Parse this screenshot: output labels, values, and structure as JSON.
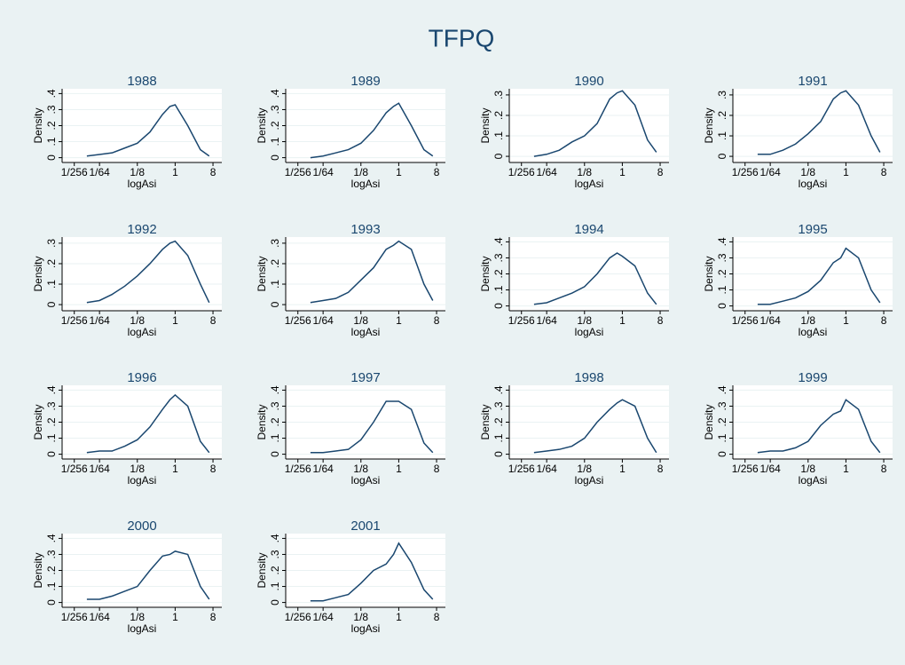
{
  "title": "TFPQ",
  "chart_data": [
    {
      "type": "line",
      "title": "1988",
      "xlabel": "logAsi",
      "ylabel": "Density",
      "xscale": "log",
      "grid": true,
      "color": "#1a476f",
      "xlim": [
        0.002,
        13
      ],
      "ylim": [
        -0.03,
        0.43
      ],
      "xticks": [
        {
          "value": 0.00390625,
          "label": "1/256"
        },
        {
          "value": 0.015625,
          "label": "1/64"
        },
        {
          "value": 0.125,
          "label": "1/8"
        },
        1,
        8
      ],
      "yticks": [
        0,
        {
          "value": 0.1,
          "label": ".1"
        },
        {
          "value": 0.2,
          "label": ".2"
        },
        {
          "value": 0.3,
          "label": ".3"
        },
        {
          "value": 0.4,
          "label": ".4"
        }
      ],
      "x": [
        0.0078,
        0.0156,
        0.0313,
        0.0625,
        0.125,
        0.25,
        0.5,
        0.75,
        1,
        2,
        4,
        6.5
      ],
      "values": [
        0.01,
        0.02,
        0.03,
        0.06,
        0.09,
        0.16,
        0.27,
        0.32,
        0.33,
        0.2,
        0.05,
        0.01
      ]
    },
    {
      "type": "line",
      "title": "1989",
      "xlabel": "logAsi",
      "ylabel": "Density",
      "xscale": "log",
      "grid": true,
      "color": "#1a476f",
      "xlim": [
        0.002,
        13
      ],
      "ylim": [
        -0.03,
        0.43
      ],
      "xticks": [
        {
          "value": 0.00390625,
          "label": "1/256"
        },
        {
          "value": 0.015625,
          "label": "1/64"
        },
        {
          "value": 0.125,
          "label": "1/8"
        },
        1,
        8
      ],
      "yticks": [
        0,
        {
          "value": 0.1,
          "label": ".1"
        },
        {
          "value": 0.2,
          "label": ".2"
        },
        {
          "value": 0.3,
          "label": ".3"
        },
        {
          "value": 0.4,
          "label": ".4"
        }
      ],
      "x": [
        0.0078,
        0.0156,
        0.0313,
        0.0625,
        0.125,
        0.25,
        0.5,
        0.75,
        1,
        2,
        4,
        6.5
      ],
      "values": [
        0.0,
        0.01,
        0.03,
        0.05,
        0.09,
        0.17,
        0.28,
        0.32,
        0.34,
        0.2,
        0.05,
        0.01
      ]
    },
    {
      "type": "line",
      "title": "1990",
      "xlabel": "logAsi",
      "ylabel": "Density",
      "xscale": "log",
      "grid": true,
      "color": "#1a476f",
      "xlim": [
        0.002,
        13
      ],
      "ylim": [
        -0.03,
        0.33
      ],
      "xticks": [
        {
          "value": 0.00390625,
          "label": "1/256"
        },
        {
          "value": 0.015625,
          "label": "1/64"
        },
        {
          "value": 0.125,
          "label": "1/8"
        },
        1,
        8
      ],
      "yticks": [
        0,
        {
          "value": 0.1,
          "label": ".1"
        },
        {
          "value": 0.2,
          "label": ".2"
        },
        {
          "value": 0.3,
          "label": ".3"
        }
      ],
      "x": [
        0.0078,
        0.0156,
        0.0313,
        0.0625,
        0.125,
        0.25,
        0.5,
        0.75,
        1,
        2,
        4,
        6.5
      ],
      "values": [
        0.0,
        0.01,
        0.03,
        0.07,
        0.1,
        0.16,
        0.28,
        0.31,
        0.32,
        0.25,
        0.08,
        0.02
      ]
    },
    {
      "type": "line",
      "title": "1991",
      "xlabel": "logAsi",
      "ylabel": "Density",
      "xscale": "log",
      "grid": true,
      "color": "#1a476f",
      "xlim": [
        0.002,
        13
      ],
      "ylim": [
        -0.03,
        0.33
      ],
      "xticks": [
        {
          "value": 0.00390625,
          "label": "1/256"
        },
        {
          "value": 0.015625,
          "label": "1/64"
        },
        {
          "value": 0.125,
          "label": "1/8"
        },
        1,
        8
      ],
      "yticks": [
        0,
        {
          "value": 0.1,
          "label": ".1"
        },
        {
          "value": 0.2,
          "label": ".2"
        },
        {
          "value": 0.3,
          "label": ".3"
        }
      ],
      "x": [
        0.0078,
        0.0156,
        0.0313,
        0.0625,
        0.125,
        0.25,
        0.5,
        0.75,
        1,
        2,
        4,
        6.5
      ],
      "values": [
        0.01,
        0.01,
        0.03,
        0.06,
        0.11,
        0.17,
        0.28,
        0.31,
        0.32,
        0.25,
        0.1,
        0.02
      ]
    },
    {
      "type": "line",
      "title": "1992",
      "xlabel": "logAsi",
      "ylabel": "Density",
      "xscale": "log",
      "grid": true,
      "color": "#1a476f",
      "xlim": [
        0.002,
        13
      ],
      "ylim": [
        -0.03,
        0.33
      ],
      "xticks": [
        {
          "value": 0.00390625,
          "label": "1/256"
        },
        {
          "value": 0.015625,
          "label": "1/64"
        },
        {
          "value": 0.125,
          "label": "1/8"
        },
        1,
        8
      ],
      "yticks": [
        0,
        {
          "value": 0.1,
          "label": ".1"
        },
        {
          "value": 0.2,
          "label": ".2"
        },
        {
          "value": 0.3,
          "label": ".3"
        }
      ],
      "x": [
        0.0078,
        0.0156,
        0.0313,
        0.0625,
        0.125,
        0.25,
        0.5,
        0.75,
        1,
        2,
        4,
        6.5
      ],
      "values": [
        0.01,
        0.02,
        0.05,
        0.09,
        0.14,
        0.2,
        0.27,
        0.3,
        0.31,
        0.24,
        0.1,
        0.01
      ]
    },
    {
      "type": "line",
      "title": "1993",
      "xlabel": "logAsi",
      "ylabel": "Density",
      "xscale": "log",
      "grid": true,
      "color": "#1a476f",
      "xlim": [
        0.002,
        13
      ],
      "ylim": [
        -0.03,
        0.33
      ],
      "xticks": [
        {
          "value": 0.00390625,
          "label": "1/256"
        },
        {
          "value": 0.015625,
          "label": "1/64"
        },
        {
          "value": 0.125,
          "label": "1/8"
        },
        1,
        8
      ],
      "yticks": [
        0,
        {
          "value": 0.1,
          "label": ".1"
        },
        {
          "value": 0.2,
          "label": ".2"
        },
        {
          "value": 0.3,
          "label": ".3"
        }
      ],
      "x": [
        0.0078,
        0.0156,
        0.0313,
        0.0625,
        0.125,
        0.25,
        0.5,
        0.75,
        1,
        2,
        4,
        6.5
      ],
      "values": [
        0.01,
        0.02,
        0.03,
        0.06,
        0.12,
        0.18,
        0.27,
        0.29,
        0.31,
        0.27,
        0.1,
        0.02
      ]
    },
    {
      "type": "line",
      "title": "1994",
      "xlabel": "logAsi",
      "ylabel": "Density",
      "xscale": "log",
      "grid": true,
      "color": "#1a476f",
      "xlim": [
        0.002,
        13
      ],
      "ylim": [
        -0.03,
        0.43
      ],
      "xticks": [
        {
          "value": 0.00390625,
          "label": "1/256"
        },
        {
          "value": 0.015625,
          "label": "1/64"
        },
        {
          "value": 0.125,
          "label": "1/8"
        },
        1,
        8
      ],
      "yticks": [
        0,
        {
          "value": 0.1,
          "label": ".1"
        },
        {
          "value": 0.2,
          "label": ".2"
        },
        {
          "value": 0.3,
          "label": ".3"
        },
        {
          "value": 0.4,
          "label": ".4"
        }
      ],
      "x": [
        0.0078,
        0.0156,
        0.0313,
        0.0625,
        0.125,
        0.25,
        0.5,
        0.75,
        1,
        2,
        4,
        6.5
      ],
      "values": [
        0.01,
        0.02,
        0.05,
        0.08,
        0.12,
        0.2,
        0.3,
        0.33,
        0.31,
        0.25,
        0.08,
        0.01
      ]
    },
    {
      "type": "line",
      "title": "1995",
      "xlabel": "logAsi",
      "ylabel": "Density",
      "xscale": "log",
      "grid": true,
      "color": "#1a476f",
      "xlim": [
        0.002,
        13
      ],
      "ylim": [
        -0.03,
        0.43
      ],
      "xticks": [
        {
          "value": 0.00390625,
          "label": "1/256"
        },
        {
          "value": 0.015625,
          "label": "1/64"
        },
        {
          "value": 0.125,
          "label": "1/8"
        },
        1,
        8
      ],
      "yticks": [
        0,
        {
          "value": 0.1,
          "label": ".1"
        },
        {
          "value": 0.2,
          "label": ".2"
        },
        {
          "value": 0.3,
          "label": ".3"
        },
        {
          "value": 0.4,
          "label": ".4"
        }
      ],
      "x": [
        0.0078,
        0.0156,
        0.0313,
        0.0625,
        0.125,
        0.25,
        0.5,
        0.75,
        1,
        2,
        4,
        6.5
      ],
      "values": [
        0.01,
        0.01,
        0.03,
        0.05,
        0.09,
        0.16,
        0.27,
        0.3,
        0.36,
        0.3,
        0.1,
        0.02
      ]
    },
    {
      "type": "line",
      "title": "1996",
      "xlabel": "logAsi",
      "ylabel": "Density",
      "xscale": "log",
      "grid": true,
      "color": "#1a476f",
      "xlim": [
        0.002,
        13
      ],
      "ylim": [
        -0.03,
        0.43
      ],
      "xticks": [
        {
          "value": 0.00390625,
          "label": "1/256"
        },
        {
          "value": 0.015625,
          "label": "1/64"
        },
        {
          "value": 0.125,
          "label": "1/8"
        },
        1,
        8
      ],
      "yticks": [
        0,
        {
          "value": 0.1,
          "label": ".1"
        },
        {
          "value": 0.2,
          "label": ".2"
        },
        {
          "value": 0.3,
          "label": ".3"
        },
        {
          "value": 0.4,
          "label": ".4"
        }
      ],
      "x": [
        0.0078,
        0.0156,
        0.0313,
        0.0625,
        0.125,
        0.25,
        0.5,
        0.75,
        1,
        2,
        4,
        6.5
      ],
      "values": [
        0.01,
        0.02,
        0.02,
        0.05,
        0.09,
        0.17,
        0.28,
        0.34,
        0.37,
        0.3,
        0.08,
        0.01
      ]
    },
    {
      "type": "line",
      "title": "1997",
      "xlabel": "logAsi",
      "ylabel": "Density",
      "xscale": "log",
      "grid": true,
      "color": "#1a476f",
      "xlim": [
        0.002,
        13
      ],
      "ylim": [
        -0.03,
        0.43
      ],
      "xticks": [
        {
          "value": 0.00390625,
          "label": "1/256"
        },
        {
          "value": 0.015625,
          "label": "1/64"
        },
        {
          "value": 0.125,
          "label": "1/8"
        },
        1,
        8
      ],
      "yticks": [
        0,
        {
          "value": 0.1,
          "label": ".1"
        },
        {
          "value": 0.2,
          "label": ".2"
        },
        {
          "value": 0.3,
          "label": ".3"
        },
        {
          "value": 0.4,
          "label": ".4"
        }
      ],
      "x": [
        0.0078,
        0.0156,
        0.0313,
        0.0625,
        0.125,
        0.25,
        0.5,
        0.75,
        1,
        2,
        4,
        6.5
      ],
      "values": [
        0.01,
        0.01,
        0.02,
        0.03,
        0.09,
        0.2,
        0.33,
        0.33,
        0.33,
        0.28,
        0.07,
        0.01
      ]
    },
    {
      "type": "line",
      "title": "1998",
      "xlabel": "logAsi",
      "ylabel": "Density",
      "xscale": "log",
      "grid": true,
      "color": "#1a476f",
      "xlim": [
        0.002,
        13
      ],
      "ylim": [
        -0.03,
        0.43
      ],
      "xticks": [
        {
          "value": 0.00390625,
          "label": "1/256"
        },
        {
          "value": 0.015625,
          "label": "1/64"
        },
        {
          "value": 0.125,
          "label": "1/8"
        },
        1,
        8
      ],
      "yticks": [
        0,
        {
          "value": 0.1,
          "label": ".1"
        },
        {
          "value": 0.2,
          "label": ".2"
        },
        {
          "value": 0.3,
          "label": ".3"
        },
        {
          "value": 0.4,
          "label": ".4"
        }
      ],
      "x": [
        0.0078,
        0.0156,
        0.0313,
        0.0625,
        0.125,
        0.25,
        0.5,
        0.75,
        1,
        2,
        4,
        6.5
      ],
      "values": [
        0.01,
        0.02,
        0.03,
        0.05,
        0.1,
        0.2,
        0.28,
        0.32,
        0.34,
        0.3,
        0.1,
        0.01
      ]
    },
    {
      "type": "line",
      "title": "1999",
      "xlabel": "logAsi",
      "ylabel": "Density",
      "xscale": "log",
      "grid": true,
      "color": "#1a476f",
      "xlim": [
        0.002,
        13
      ],
      "ylim": [
        -0.03,
        0.43
      ],
      "xticks": [
        {
          "value": 0.00390625,
          "label": "1/256"
        },
        {
          "value": 0.015625,
          "label": "1/64"
        },
        {
          "value": 0.125,
          "label": "1/8"
        },
        1,
        8
      ],
      "yticks": [
        0,
        {
          "value": 0.1,
          "label": ".1"
        },
        {
          "value": 0.2,
          "label": ".2"
        },
        {
          "value": 0.3,
          "label": ".3"
        },
        {
          "value": 0.4,
          "label": ".4"
        }
      ],
      "x": [
        0.0078,
        0.0156,
        0.0313,
        0.0625,
        0.125,
        0.25,
        0.5,
        0.75,
        1,
        2,
        4,
        6.5
      ],
      "values": [
        0.01,
        0.02,
        0.02,
        0.04,
        0.08,
        0.18,
        0.25,
        0.27,
        0.34,
        0.28,
        0.08,
        0.01
      ]
    },
    {
      "type": "line",
      "title": "2000",
      "xlabel": "logAsi",
      "ylabel": "Density",
      "xscale": "log",
      "grid": true,
      "color": "#1a476f",
      "xlim": [
        0.002,
        13
      ],
      "ylim": [
        -0.03,
        0.43
      ],
      "xticks": [
        {
          "value": 0.00390625,
          "label": "1/256"
        },
        {
          "value": 0.015625,
          "label": "1/64"
        },
        {
          "value": 0.125,
          "label": "1/8"
        },
        1,
        8
      ],
      "yticks": [
        0,
        {
          "value": 0.1,
          "label": ".1"
        },
        {
          "value": 0.2,
          "label": ".2"
        },
        {
          "value": 0.3,
          "label": ".3"
        },
        {
          "value": 0.4,
          "label": ".4"
        }
      ],
      "x": [
        0.0078,
        0.0156,
        0.0313,
        0.0625,
        0.125,
        0.25,
        0.5,
        0.75,
        1,
        2,
        4,
        6.5
      ],
      "values": [
        0.02,
        0.02,
        0.04,
        0.07,
        0.1,
        0.2,
        0.29,
        0.3,
        0.32,
        0.3,
        0.1,
        0.02
      ]
    },
    {
      "type": "line",
      "title": "2001",
      "xlabel": "logAsi",
      "ylabel": "Density",
      "xscale": "log",
      "grid": true,
      "color": "#1a476f",
      "xlim": [
        0.002,
        13
      ],
      "ylim": [
        -0.03,
        0.43
      ],
      "xticks": [
        {
          "value": 0.00390625,
          "label": "1/256"
        },
        {
          "value": 0.015625,
          "label": "1/64"
        },
        {
          "value": 0.125,
          "label": "1/8"
        },
        1,
        8
      ],
      "yticks": [
        0,
        {
          "value": 0.1,
          "label": ".1"
        },
        {
          "value": 0.2,
          "label": ".2"
        },
        {
          "value": 0.3,
          "label": ".3"
        },
        {
          "value": 0.4,
          "label": ".4"
        }
      ],
      "x": [
        0.0078,
        0.0156,
        0.0313,
        0.0625,
        0.125,
        0.25,
        0.5,
        0.75,
        1,
        2,
        4,
        6.5
      ],
      "values": [
        0.01,
        0.01,
        0.03,
        0.05,
        0.12,
        0.2,
        0.24,
        0.3,
        0.37,
        0.25,
        0.08,
        0.02
      ]
    }
  ]
}
